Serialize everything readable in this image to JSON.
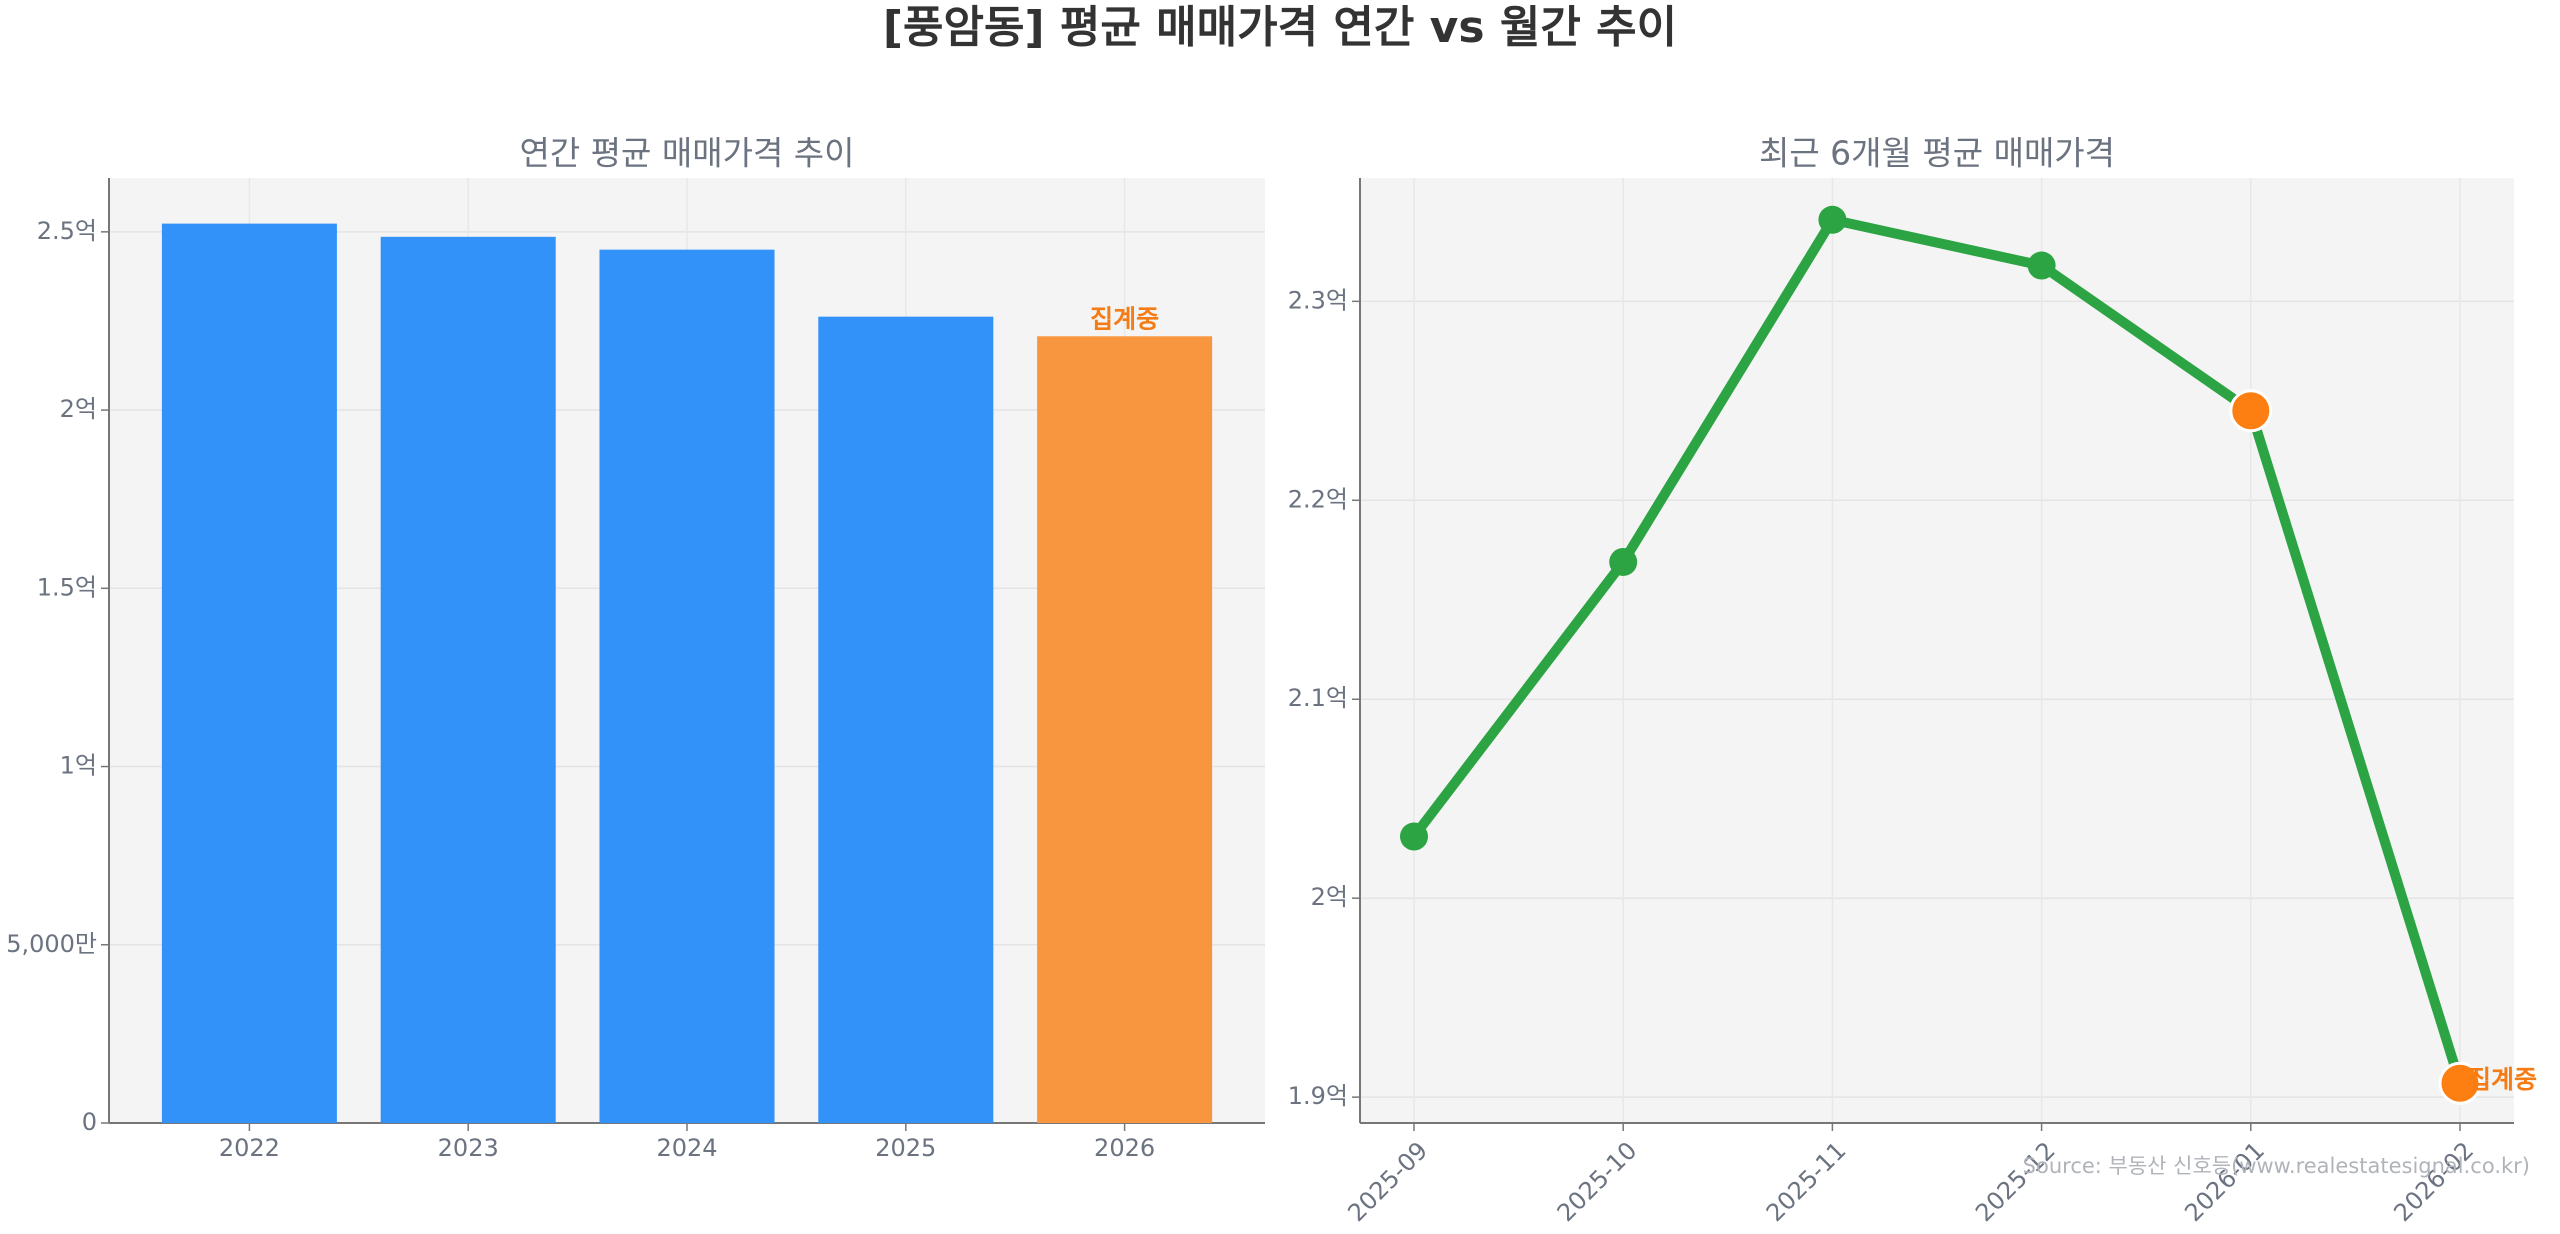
{
  "title": "[풍암동] 평균 매매가격 연간 vs 월간 추이",
  "source": "Source: 부동산 신호등(www.realestatesignal.co.kr)",
  "chart_data": [
    {
      "type": "bar",
      "title": "연간 평균 매매가격 추이",
      "categories": [
        "2022",
        "2023",
        "2024",
        "2025",
        "2026"
      ],
      "values": [
        2.523,
        2.486,
        2.45,
        2.262,
        2.207
      ],
      "colors": [
        "#3292f9",
        "#3292f9",
        "#3292f9",
        "#3292f9",
        "#f8963f"
      ],
      "ylim": [
        0,
        2.651
      ],
      "yticks": [
        0,
        {
          "value": 0.5,
          "label": "5,000만"
        },
        {
          "value": 1,
          "label": "1억"
        },
        {
          "value": 1.5,
          "label": "1.5억"
        },
        {
          "value": 2,
          "label": "2억"
        },
        {
          "value": 2.5,
          "label": "2.5억"
        }
      ],
      "grid": true,
      "annotation": {
        "text": "집계중",
        "x": "2026",
        "color": "#f57c14"
      }
    },
    {
      "type": "line",
      "title": "최근 6개월 평균 매매가격",
      "categories": [
        "2025-09",
        "2025-10",
        "2025-11",
        "2025-12",
        "2026-01",
        "2026-02"
      ],
      "values": [
        2.031,
        2.169,
        2.341,
        2.318,
        2.245,
        1.907
      ],
      "color": "#2ca444",
      "marker_colors": [
        "#2ca444",
        "#2ca444",
        "#2ca444",
        "#2ca444",
        "#fd7f12",
        "#fd7f12"
      ],
      "ylim": [
        1.887,
        2.362
      ],
      "yticks": [
        {
          "value": 1.9,
          "label": "1.9억"
        },
        {
          "value": 2,
          "label": "2억"
        },
        {
          "value": 2.1,
          "label": "2.1억"
        },
        {
          "value": 2.2,
          "label": "2.2억"
        },
        {
          "value": 2.3,
          "label": "2.3억"
        }
      ],
      "grid": true,
      "annotation": {
        "text": "집계중",
        "x": "2026-02",
        "color": "#f57c14"
      }
    }
  ]
}
